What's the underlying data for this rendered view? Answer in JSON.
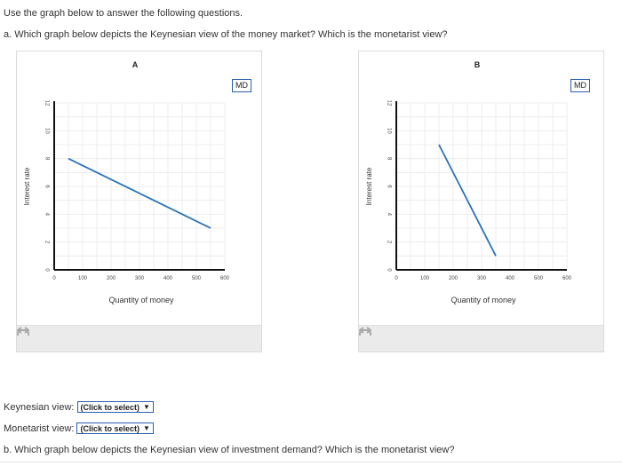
{
  "intro": "Use the graph below to answer the following questions.",
  "question_a": "a. Which graph below depicts the Keynesian view of the money market? Which is the monetarist view?",
  "question_b": "b. Which graph below depicts the Keynesian view of investment demand? Which is the monetarist view?",
  "graph_a": {
    "title": "A",
    "xlabel": "Quantity of money",
    "ylabel": "Interest rate",
    "curve_button": "MD"
  },
  "graph_b": {
    "title": "B",
    "xlabel": "Quantity of money",
    "ylabel": "Interest rate",
    "curve_button": "MD"
  },
  "keynesian_label": "Keynesian view:",
  "monetarist_label": "Monetarist view:",
  "select_placeholder": "(Click to select)",
  "colors": {
    "curve": "#2b73b6",
    "button_border": "#2a5db0",
    "footer": "#ebebeb"
  },
  "chart_data": [
    {
      "type": "line",
      "title": "A",
      "xlabel": "Quantity of money",
      "ylabel": "Interest rate",
      "xlim": [
        0,
        600
      ],
      "ylim": [
        0,
        12
      ],
      "xticks": [
        "0",
        "100",
        "200",
        "300",
        "400",
        "500",
        "600"
      ],
      "yticks": [
        "0",
        "2",
        "4",
        "6",
        "8",
        "10",
        "12"
      ],
      "grid": true,
      "series": [
        {
          "name": "MD",
          "x": [
            50,
            550
          ],
          "y": [
            8,
            3
          ]
        }
      ]
    },
    {
      "type": "line",
      "title": "B",
      "xlabel": "Quantity of money",
      "ylabel": "Interest rate",
      "xlim": [
        0,
        600
      ],
      "ylim": [
        0,
        12
      ],
      "xticks": [
        "0",
        "100",
        "200",
        "300",
        "400",
        "500",
        "600"
      ],
      "yticks": [
        "0",
        "2",
        "4",
        "6",
        "8",
        "10",
        "12"
      ],
      "grid": true,
      "series": [
        {
          "name": "MD",
          "x": [
            150,
            350
          ],
          "y": [
            9,
            1
          ]
        }
      ]
    }
  ]
}
